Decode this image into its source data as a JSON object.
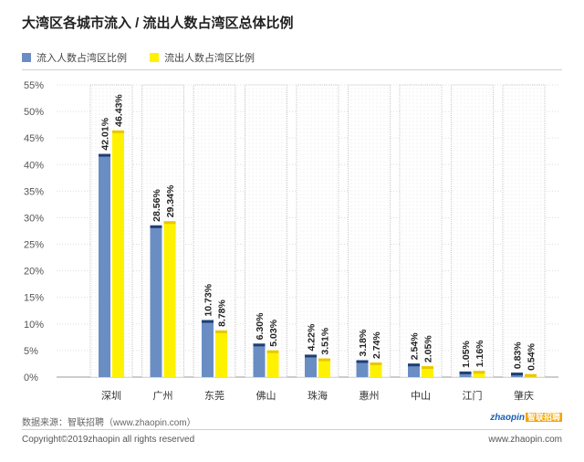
{
  "header": {
    "title": "大湾区各城市流入 / 流出人数占湾区总体比例"
  },
  "legend": [
    {
      "label": "流入人数占湾区比例",
      "color": "#6a8ec4"
    },
    {
      "label": "流出人数占湾区比例",
      "color": "#fff200"
    }
  ],
  "chart_data": {
    "type": "bar",
    "categories": [
      "深圳",
      "广州",
      "东莞",
      "佛山",
      "珠海",
      "惠州",
      "中山",
      "江门",
      "肇庆"
    ],
    "series": [
      {
        "name": "流入人数占湾区比例",
        "values": [
          42.01,
          28.56,
          10.73,
          6.3,
          4.22,
          3.18,
          2.54,
          1.05,
          0.83
        ],
        "labels": [
          "42.01%",
          "28.56%",
          "10.73%",
          "6.30%",
          "4.22%",
          "3.18%",
          "2.54%",
          "1.05%",
          "0.83%"
        ],
        "color": "#6a8ec4",
        "cap_color": "#1f3f73"
      },
      {
        "name": "流出人数占湾区比例",
        "values": [
          46.43,
          29.34,
          8.78,
          5.03,
          3.51,
          2.74,
          2.05,
          1.16,
          0.54
        ],
        "labels": [
          "46.43%",
          "29.34%",
          "8.78%",
          "5.03%",
          "3.51%",
          "2.74%",
          "2.05%",
          "1.16%",
          "0.54%"
        ],
        "color": "#fff200",
        "cap_color": "#e8c800"
      }
    ],
    "yticks": [
      "0%",
      "5%",
      "10%",
      "15%",
      "20%",
      "25%",
      "30%",
      "35%",
      "40%",
      "45%",
      "50%",
      "55%"
    ],
    "ylim": [
      0,
      55
    ],
    "grid": true,
    "legend_position": "top-left"
  },
  "footer": {
    "source": "数据来源：智联招聘（www.zhaopin.com）",
    "copyright": "Copyright©2019zhaopin all rights reserved",
    "url": "www.zhaopin.com",
    "logo_text": "zhaopin",
    "logo_badge": "智联招聘"
  }
}
